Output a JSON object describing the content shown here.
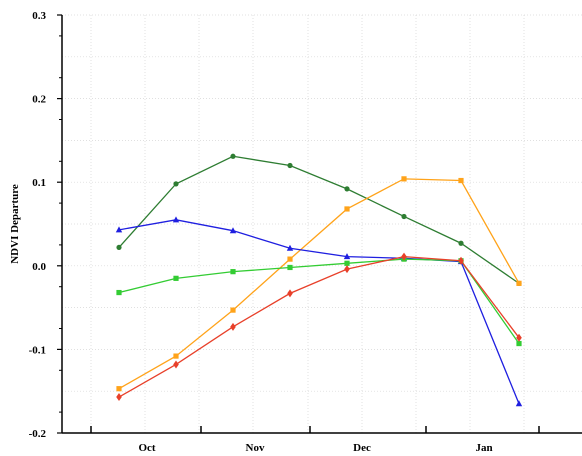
{
  "chart_data": {
    "type": "line",
    "title": "",
    "xlabel": "",
    "ylabel": "NDVI Departure",
    "ylim": [
      -0.2,
      0.3
    ],
    "y_ticks": [
      "0.3",
      "0.2",
      "0.1",
      "0.0",
      "-0.1",
      "-0.2"
    ],
    "month_labels": [
      "Oct",
      "Nov",
      "Dec",
      "Jan"
    ],
    "grid": true,
    "legend": "none",
    "x_points": [
      "Oct 1",
      "Oct 16",
      "Nov 1",
      "Nov 16",
      "Dec 1",
      "Dec 16",
      "Jan 1",
      "Jan 16"
    ],
    "series": [
      {
        "color": "#2e7d32",
        "marker": "circle",
        "values": [
          0.022,
          0.098,
          0.131,
          0.12,
          0.092,
          0.059,
          0.027,
          -0.021
        ]
      },
      {
        "color": "#ffa31a",
        "marker": "square",
        "values": [
          -0.147,
          -0.108,
          -0.053,
          0.008,
          0.068,
          0.104,
          0.102,
          -0.021
        ]
      },
      {
        "color": "#1f1fe0",
        "marker": "triangle",
        "values": [
          0.043,
          0.055,
          0.042,
          0.021,
          0.011,
          0.009,
          0.005,
          -0.165
        ]
      },
      {
        "color": "#33cc33",
        "marker": "square",
        "values": [
          -0.032,
          -0.015,
          -0.007,
          -0.002,
          0.003,
          0.008,
          0.006,
          -0.093
        ]
      },
      {
        "color": "#e8402a",
        "marker": "diamond",
        "values": [
          -0.157,
          -0.118,
          -0.073,
          -0.033,
          -0.004,
          0.011,
          0.006,
          -0.086
        ]
      }
    ]
  }
}
